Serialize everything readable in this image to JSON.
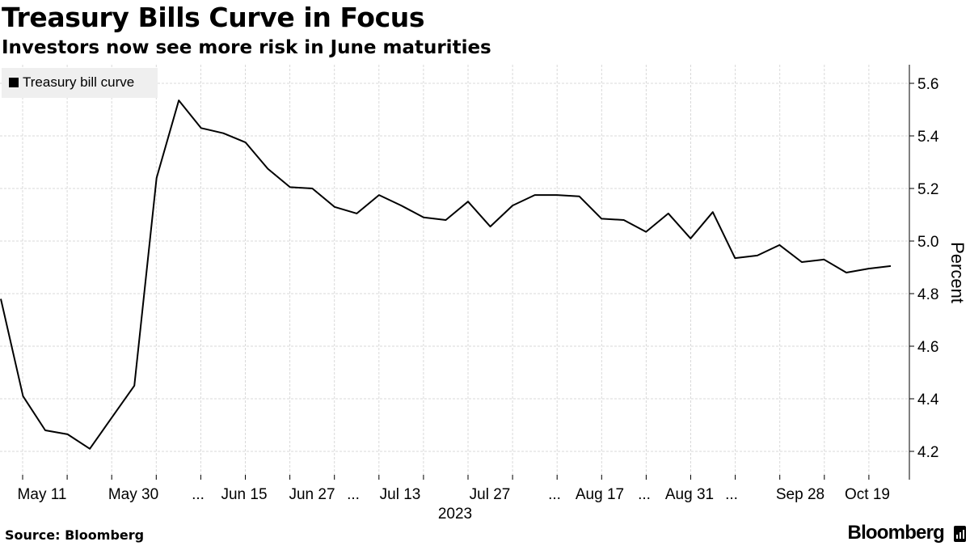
{
  "header": {
    "title": "Treasury Bills Curve in Focus",
    "subtitle": "Investors now see more risk in June maturities"
  },
  "footer": {
    "source": "Source: Bloomberg",
    "brand": "Bloomberg"
  },
  "chart_data": {
    "type": "line",
    "title": "Treasury Bills Curve in Focus",
    "subtitle": "Investors now see more risk in June maturities",
    "xlabel": "2023",
    "ylabel": "Percent",
    "ylim": [
      4.1,
      5.66
    ],
    "yticks": [
      4.2,
      4.4,
      4.6,
      4.8,
      5.0,
      5.2,
      5.4,
      5.6
    ],
    "ytick_labels": [
      "4.2",
      "4.4",
      "4.6",
      "4.8",
      "5.0",
      "5.2",
      "5.4",
      "5.6"
    ],
    "grid": true,
    "legend_position": "top-left",
    "series_color": "#000000",
    "xtick_labels": [
      "May 11",
      "May 30",
      "...",
      "Jun 15",
      "Jun 27",
      "...",
      "Jul 13",
      "Jul 27",
      "...",
      "Aug 17",
      "...",
      "Aug 31",
      "...",
      "Sep 28",
      "Oct 19"
    ],
    "series": [
      {
        "name": "Treasury bill curve",
        "values": [
          4.78,
          4.41,
          4.28,
          4.265,
          4.21,
          4.33,
          4.45,
          5.24,
          5.535,
          5.43,
          5.41,
          5.375,
          5.275,
          5.205,
          5.2,
          5.13,
          5.105,
          5.175,
          5.135,
          5.09,
          5.08,
          5.15,
          5.055,
          5.135,
          5.175,
          5.175,
          5.17,
          5.085,
          5.08,
          5.035,
          5.105,
          5.01,
          5.11,
          4.935,
          4.945,
          4.985,
          4.92,
          4.93,
          4.88,
          4.895,
          4.905
        ]
      }
    ]
  }
}
